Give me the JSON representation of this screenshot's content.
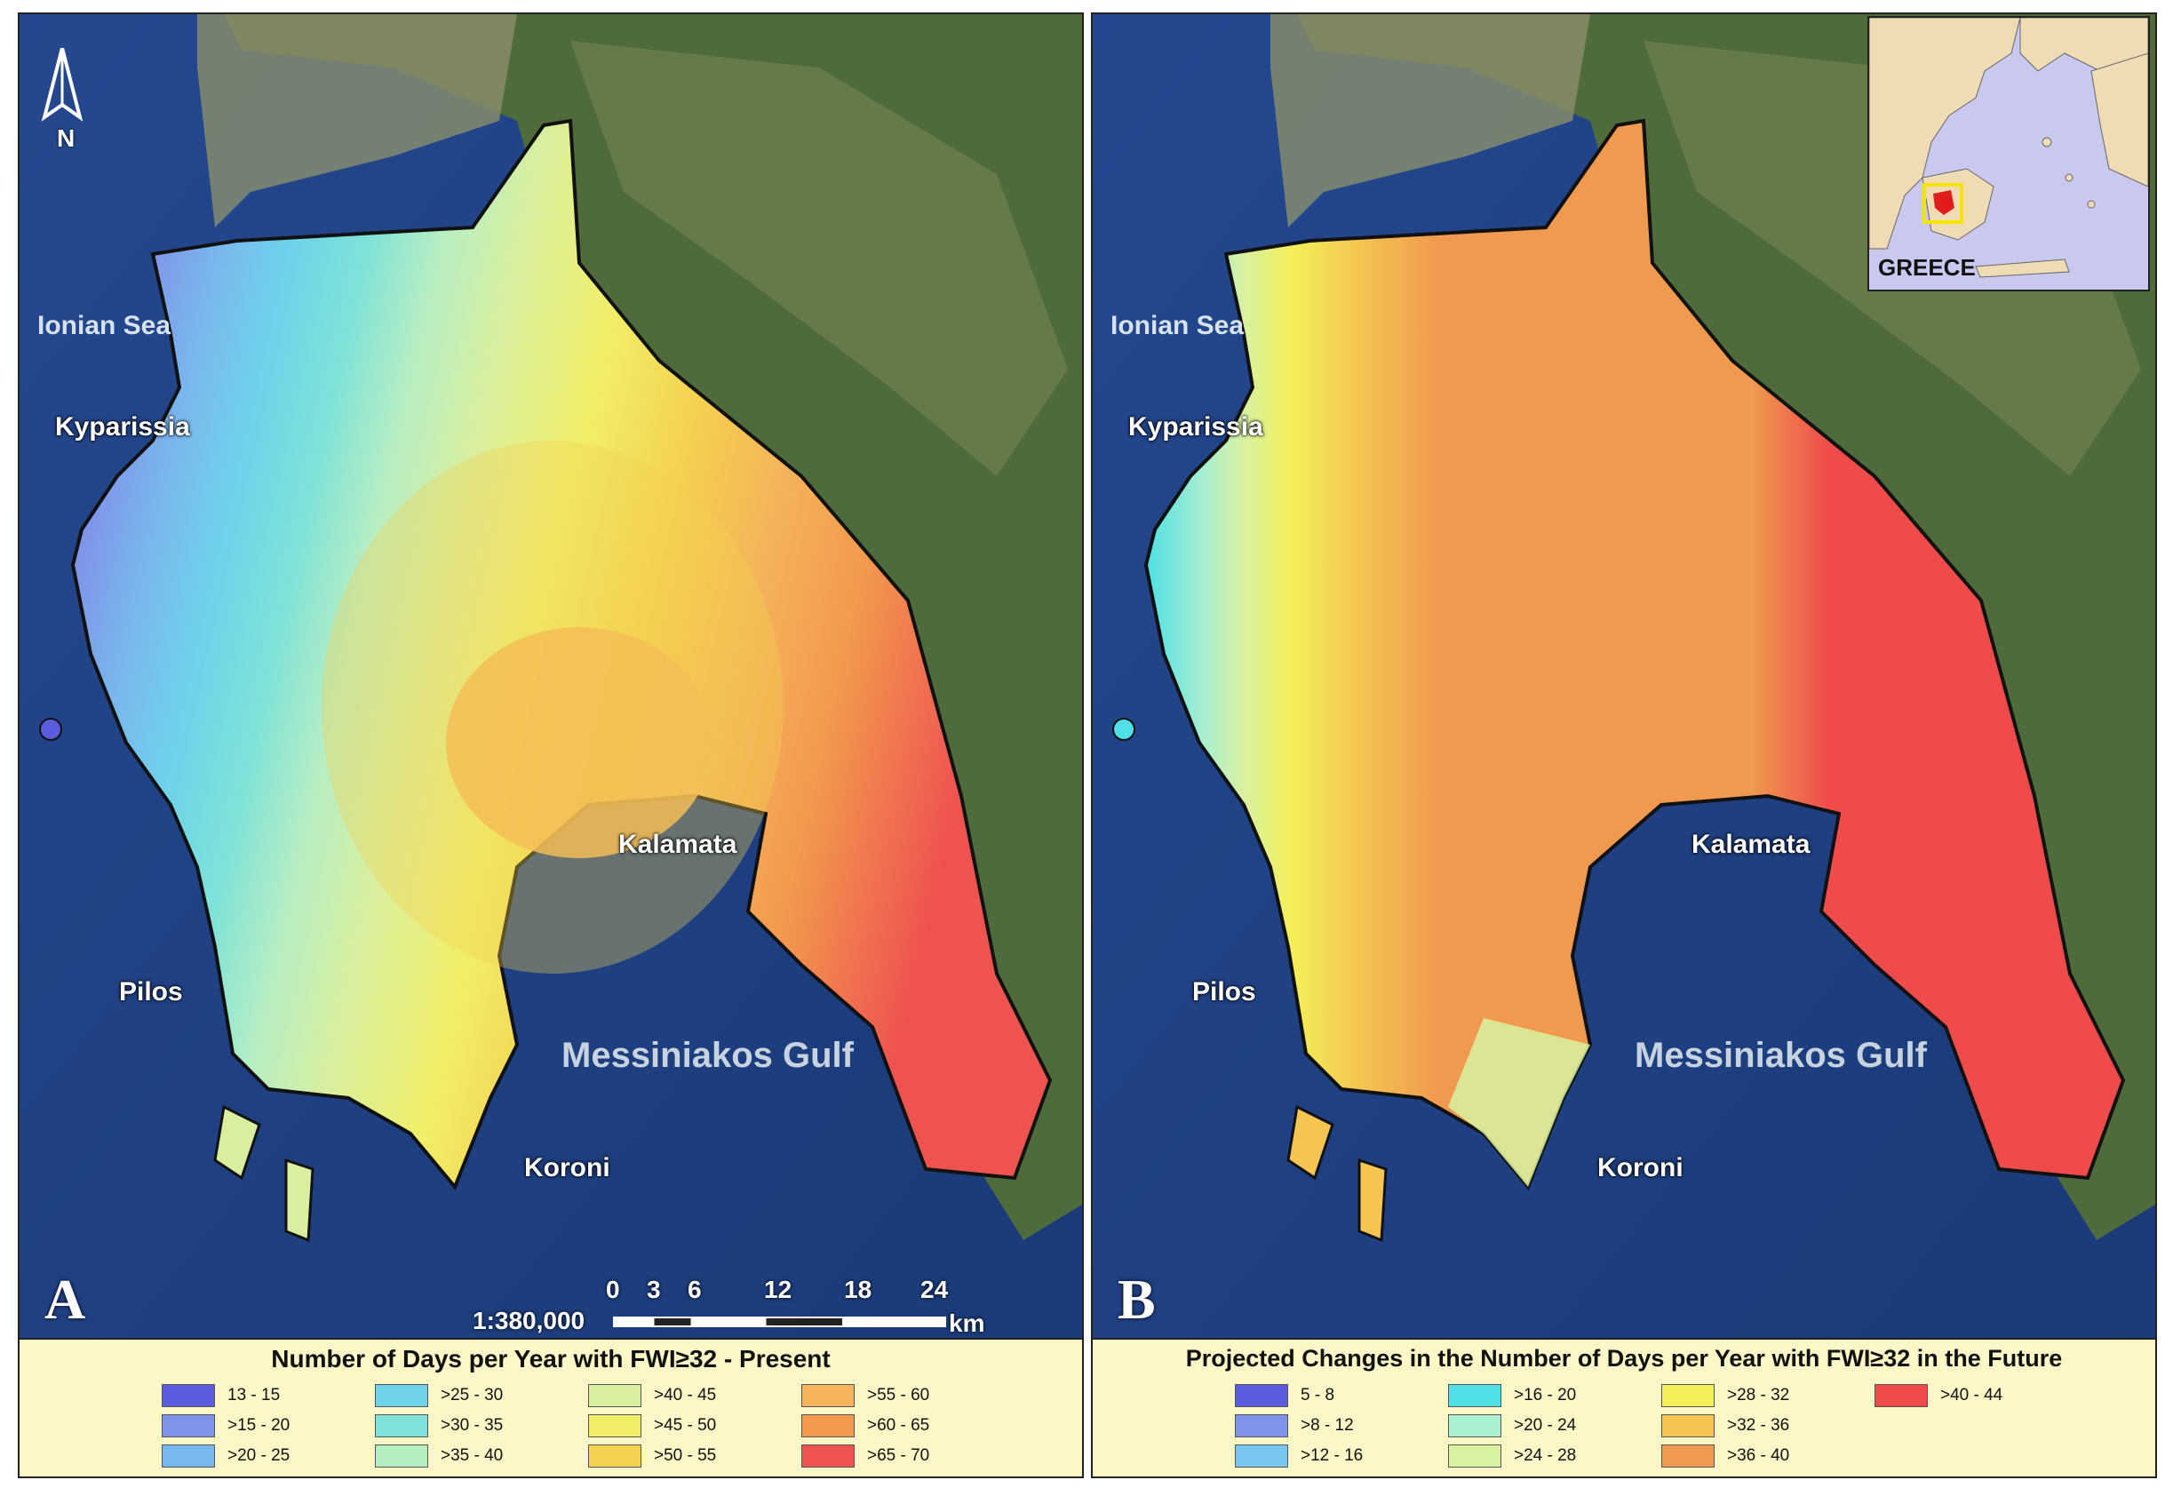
{
  "panel_a": {
    "letter": "A",
    "labels": {
      "sea": "Ionian Sea",
      "town1": "Kyparissia",
      "town2": "Pilos",
      "town3": "Kalamata",
      "town4": "Koroni",
      "gulf": "Messiniakos Gulf"
    },
    "scale": {
      "ratio": "1:380,000",
      "ticks": [
        "0",
        "3",
        "6",
        "12",
        "18",
        "24"
      ],
      "unit": "km"
    },
    "north_label": "N",
    "legend_title": "Number of Days per Year with FWI≥32 - Present",
    "legend": [
      {
        "label": "13 - 15",
        "color": "#5b5bdf"
      },
      {
        "label": ">15 - 20",
        "color": "#7f93e8"
      },
      {
        "label": ">20 - 25",
        "color": "#79b8ee"
      },
      {
        "label": ">25 - 30",
        "color": "#6fd3ea"
      },
      {
        "label": ">30 - 35",
        "color": "#7fe2d8"
      },
      {
        "label": ">35 - 40",
        "color": "#b6eec4"
      },
      {
        "label": ">40 - 45",
        "color": "#d9ef9e"
      },
      {
        "label": ">45 - 50",
        "color": "#f1ef6a"
      },
      {
        "label": ">50 - 55",
        "color": "#f4d24f"
      },
      {
        "label": ">55 - 60",
        "color": "#f5b459"
      },
      {
        "label": ">60 - 65",
        "color": "#f29a4e"
      },
      {
        "label": ">65 - 70",
        "color": "#ef5350"
      }
    ]
  },
  "panel_b": {
    "letter": "B",
    "labels": {
      "sea": "Ionian Sea",
      "town1": "Kyparissia",
      "town2": "Pilos",
      "town3": "Kalamata",
      "town4": "Koroni",
      "gulf": "Messiniakos Gulf"
    },
    "legend_title": "Projected Changes in the Number of Days per Year with FWI≥32 in the Future",
    "legend": [
      {
        "label": "5 - 8",
        "color": "#5b5bdf"
      },
      {
        "label": ">8 - 12",
        "color": "#7f93e8"
      },
      {
        "label": ">12 - 16",
        "color": "#79c6ee"
      },
      {
        "label": ">16 - 20",
        "color": "#4fe0e6"
      },
      {
        "label": ">20 - 24",
        "color": "#a9efd0"
      },
      {
        "label": ">24 - 28",
        "color": "#d8f2a0"
      },
      {
        "label": ">28 - 32",
        "color": "#f4ef58"
      },
      {
        "label": ">32 - 36",
        "color": "#f5c451"
      },
      {
        "label": ">36 - 40",
        "color": "#ef9a4e"
      },
      {
        "label": ">40 - 44",
        "color": "#ef4b4b"
      }
    ]
  },
  "inset": {
    "label": "GREECE"
  }
}
